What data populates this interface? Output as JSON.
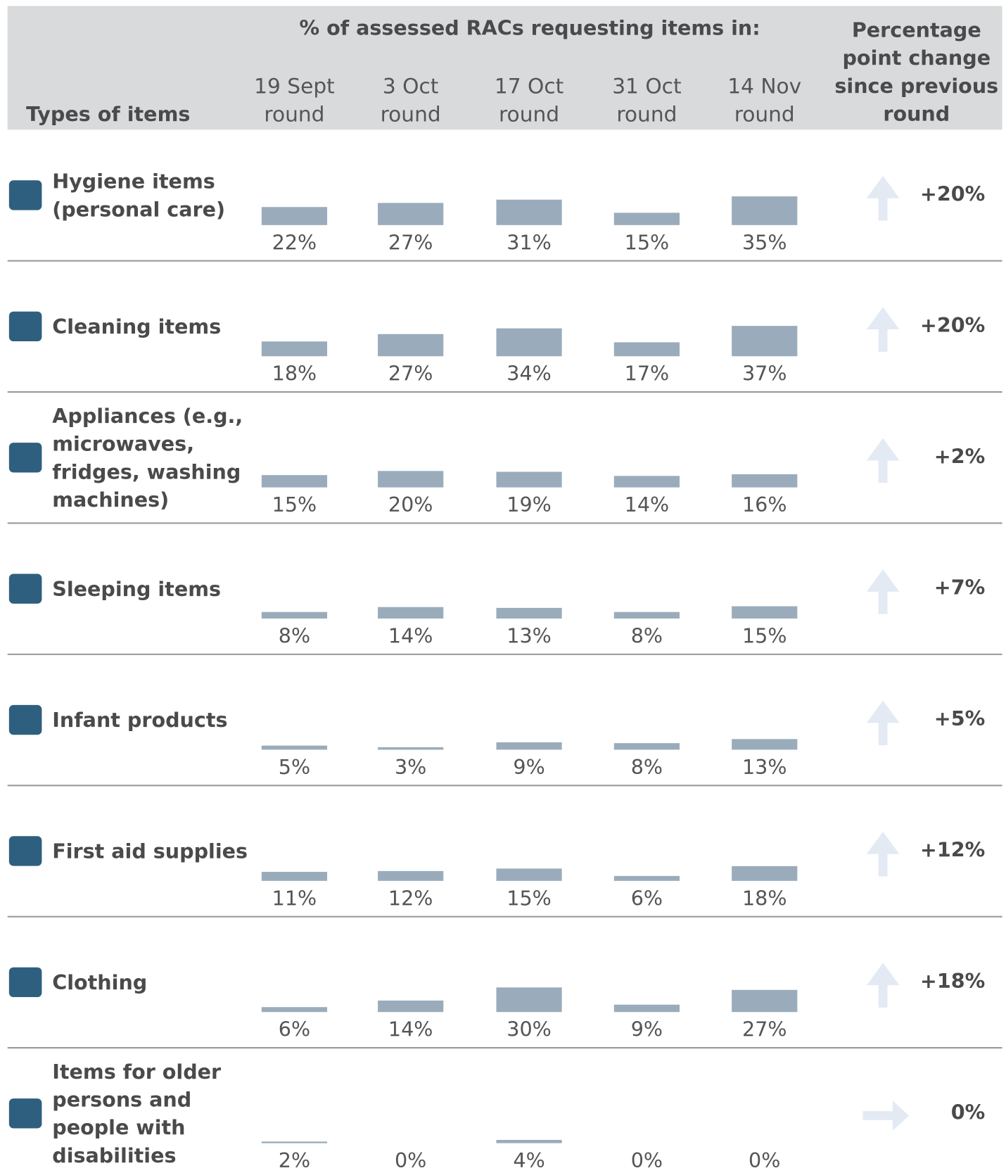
{
  "header": {
    "group_title": "% of assessed RACs requesting items in:",
    "row_header": "Types of items",
    "columns": [
      [
        "19 Sept",
        "round"
      ],
      [
        "3 Oct",
        "round"
      ],
      [
        "17 Oct",
        "round"
      ],
      [
        "31 Oct",
        "round"
      ],
      [
        "14 Nov",
        "round"
      ]
    ],
    "change_header": [
      "Percentage",
      "point change",
      "since previous",
      "round"
    ]
  },
  "bar_color": "#9aacbb",
  "rows": [
    {
      "label": [
        "Hygiene items",
        "(personal care)"
      ],
      "values": [
        22,
        27,
        31,
        15,
        35
      ],
      "value_labels": [
        "22%",
        "27%",
        "31%",
        "15%",
        "35%"
      ],
      "change": 20,
      "change_label": "+20%"
    },
    {
      "label": [
        "Cleaning items"
      ],
      "values": [
        18,
        27,
        34,
        17,
        37
      ],
      "value_labels": [
        "18%",
        "27%",
        "34%",
        "17%",
        "37%"
      ],
      "change": 20,
      "change_label": "+20%"
    },
    {
      "label": [
        "Appliances (e.g.,",
        "microwaves,",
        "fridges, washing",
        "machines)"
      ],
      "values": [
        15,
        20,
        19,
        14,
        16
      ],
      "value_labels": [
        "15%",
        "20%",
        "19%",
        "14%",
        "16%"
      ],
      "change": 2,
      "change_label": "+2%"
    },
    {
      "label": [
        "Sleeping items"
      ],
      "values": [
        8,
        14,
        13,
        8,
        15
      ],
      "value_labels": [
        "8%",
        "14%",
        "13%",
        "8%",
        "15%"
      ],
      "change": 7,
      "change_label": "+7%"
    },
    {
      "label": [
        "Infant products"
      ],
      "values": [
        5,
        3,
        9,
        8,
        13
      ],
      "value_labels": [
        "5%",
        "3%",
        "9%",
        "8%",
        "13%"
      ],
      "change": 5,
      "change_label": "+5%"
    },
    {
      "label": [
        "First aid supplies"
      ],
      "values": [
        11,
        12,
        15,
        6,
        18
      ],
      "value_labels": [
        "11%",
        "12%",
        "15%",
        "6%",
        "18%"
      ],
      "change": 12,
      "change_label": "+12%"
    },
    {
      "label": [
        "Clothing"
      ],
      "values": [
        6,
        14,
        30,
        9,
        27
      ],
      "value_labels": [
        "6%",
        "14%",
        "30%",
        "9%",
        "27%"
      ],
      "change": 18,
      "change_label": "+18%"
    },
    {
      "label": [
        "Items for older",
        "persons and",
        "people with",
        "disabilities"
      ],
      "values": [
        2,
        0,
        4,
        0,
        0
      ],
      "value_labels": [
        "2%",
        "0%",
        "4%",
        "0%",
        "0%"
      ],
      "change": 0,
      "change_label": "0%"
    }
  ]
}
